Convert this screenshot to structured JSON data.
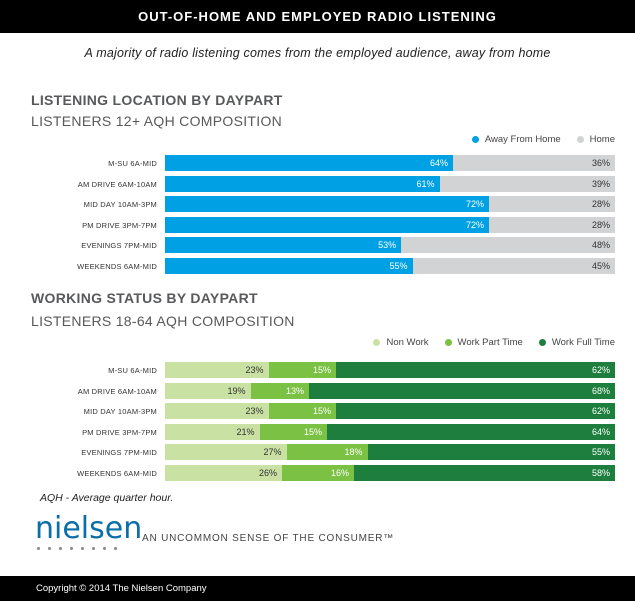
{
  "header": {
    "title": "OUT-OF-HOME AND EMPLOYED RADIO LISTENING"
  },
  "subtitle": "A majority of radio listening comes from the employed audience, away from home",
  "chart_data": [
    {
      "type": "bar",
      "orientation": "horizontal",
      "stacked": true,
      "title": "LISTENING LOCATION BY DAYPART",
      "subtitle": "LISTENERS 12+ AQH COMPOSITION",
      "legend_position": "top-right",
      "categories": [
        "M-SU 6A-MID",
        "AM DRIVE 6AM-10AM",
        "MID DAY 10AM-3PM",
        "PM DRIVE 3PM-7PM",
        "EVENINGS 7PM-MID",
        "WEEKENDS 6AM-MID"
      ],
      "xlim": [
        0,
        100
      ],
      "series": [
        {
          "name": "Away From Home",
          "color": "#00a1e4",
          "values": [
            64,
            61,
            72,
            72,
            53,
            55
          ],
          "labels": [
            "64%",
            "61%",
            "72%",
            "72%",
            "53%",
            "55%"
          ]
        },
        {
          "name": "Home",
          "color": "#d1d3d4",
          "values": [
            36,
            39,
            28,
            28,
            48,
            45
          ],
          "labels": [
            "36%",
            "39%",
            "28%",
            "28%",
            "48%",
            "45%"
          ]
        }
      ]
    },
    {
      "type": "bar",
      "orientation": "horizontal",
      "stacked": true,
      "title": "WORKING STATUS BY DAYPART",
      "subtitle": "LISTENERS 18-64 AQH COMPOSITION",
      "legend_position": "top-right",
      "categories": [
        "M-SU 6A-MID",
        "AM DRIVE 6AM-10AM",
        "MID DAY 10AM-3PM",
        "PM DRIVE 3PM-7PM",
        "EVENINGS 7PM-MID",
        "WEEKENDS 6AM-MID"
      ],
      "xlim": [
        0,
        100
      ],
      "series": [
        {
          "name": "Non Work",
          "color": "#c9e1a3",
          "values": [
            23,
            19,
            23,
            21,
            27,
            26
          ],
          "labels": [
            "23%",
            "19%",
            "23%",
            "21%",
            "27%",
            "26%"
          ]
        },
        {
          "name": "Work Part Time",
          "color": "#7bc143",
          "values": [
            15,
            13,
            15,
            15,
            18,
            16
          ],
          "labels": [
            "15%",
            "13%",
            "15%",
            "15%",
            "18%",
            "16%"
          ]
        },
        {
          "name": "Work Full Time",
          "color": "#1e7e3e",
          "values": [
            62,
            68,
            62,
            64,
            55,
            58
          ],
          "labels": [
            "62%",
            "68%",
            "62%",
            "64%",
            "55%",
            "58%"
          ]
        }
      ]
    }
  ],
  "footnote": "AQH - Average quarter hour.",
  "brand": {
    "logo_text": "nielsen",
    "tagline": "AN UNCOMMON SENSE OF THE CONSUMER™"
  },
  "footer": {
    "copyright": "Copyright © 2014 The Nielsen Company"
  }
}
